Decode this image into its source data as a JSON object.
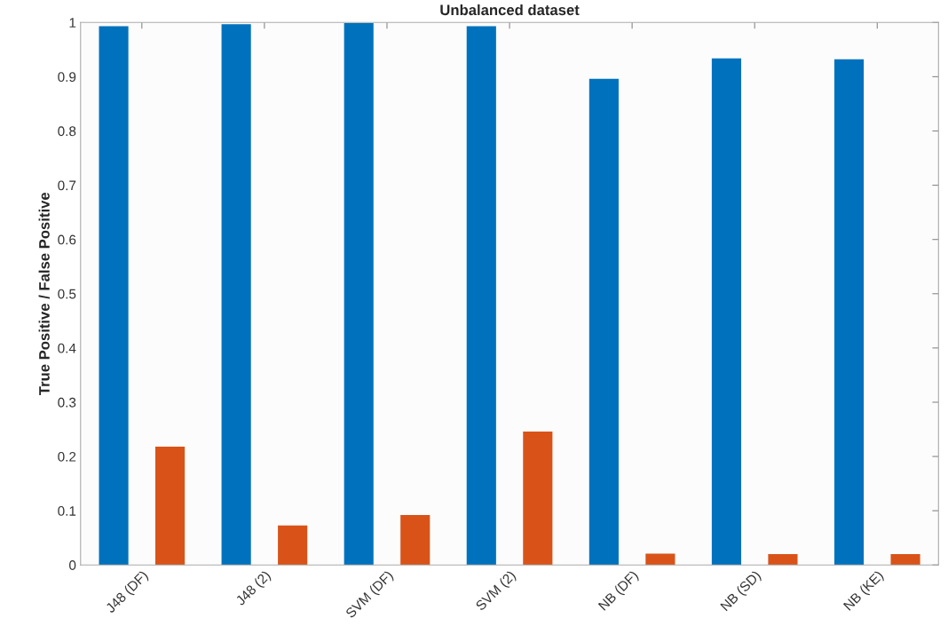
{
  "chart_data": {
    "type": "bar",
    "title": "Unbalanced dataset",
    "ylabel": "True Positive / False Positive",
    "categories": [
      "J48 (DF)",
      "J48 (2)",
      "SVM (DF)",
      "SVM (2)",
      "NB (DF)",
      "NB (SD)",
      "NB (KE)"
    ],
    "series": [
      {
        "color": "#0072bd",
        "values": [
          0.993,
          0.997,
          0.999,
          0.993,
          0.896,
          0.934,
          0.932
        ]
      },
      {
        "color": "#d95319",
        "values": [
          0.218,
          0.073,
          0.092,
          0.246,
          0.021,
          0.02,
          0.02
        ]
      }
    ],
    "ylim": [
      0,
      1
    ],
    "yticks": [
      0,
      0.1,
      0.2,
      0.3,
      0.4,
      0.5,
      0.6,
      0.7,
      0.8,
      0.9,
      1
    ],
    "grid": false
  }
}
